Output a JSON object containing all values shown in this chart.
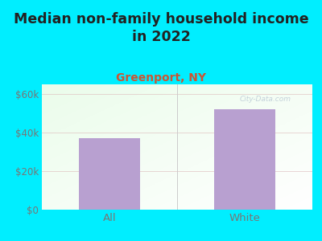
{
  "title": "Median non-family household income\nin 2022",
  "subtitle": "Greenport, NY",
  "categories": [
    "All",
    "White"
  ],
  "values": [
    37000,
    52000
  ],
  "bar_color": "#b8a0d0",
  "background_outer": "#00eeff",
  "title_fontsize": 12.5,
  "subtitle_fontsize": 10,
  "subtitle_color": "#cc5533",
  "tick_color": "#777777",
  "title_color": "#222222",
  "ylim": [
    0,
    65000
  ],
  "yticks": [
    0,
    20000,
    40000,
    60000
  ],
  "ytick_labels": [
    "$0",
    "$20k",
    "$40k",
    "$60k"
  ],
  "grid_color": "#ddbbbb",
  "watermark": "City-Data.com",
  "grad_top": "#e8f5e8",
  "grad_bottom": "#f8fff8",
  "grad_right": "#f0f8f0"
}
